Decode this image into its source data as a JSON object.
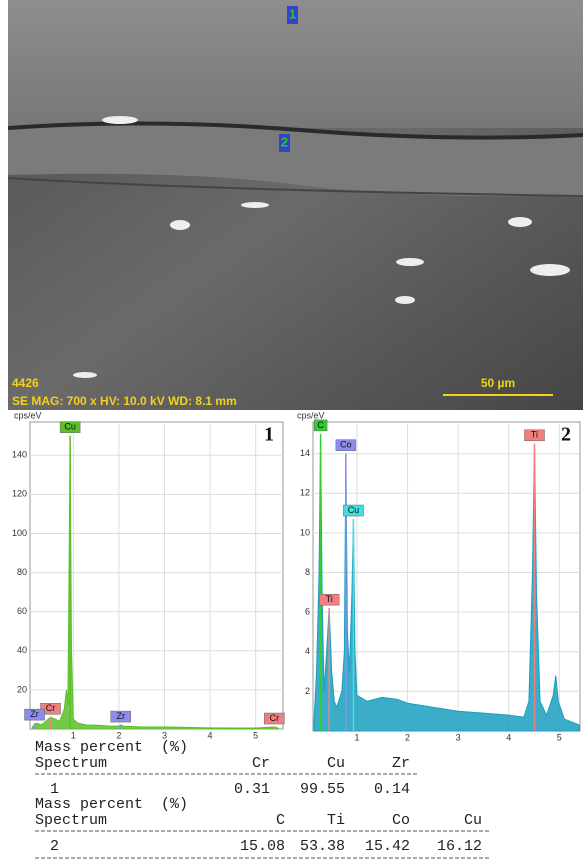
{
  "sem_image": {
    "markers": [
      "1",
      "2"
    ],
    "id": "4426",
    "info": "SE  MAG: 700 x  HV: 10.0 kV  WD: 8.1 mm",
    "scale_bar": "50 µm"
  },
  "chart_data": [
    {
      "type": "area",
      "panel_label": "1",
      "y_label": "cps/eV",
      "color": "#5cbf2a",
      "x": [
        0.1,
        0.2,
        0.3,
        0.4,
        0.5,
        0.6,
        0.7,
        0.8,
        0.85,
        0.88,
        0.9,
        0.93,
        0.96,
        1.0,
        1.1,
        1.3,
        1.5,
        1.8,
        2.0,
        2.04,
        2.1,
        2.5,
        3,
        3.5,
        4,
        4.5,
        5,
        5.41,
        5.5
      ],
      "values": [
        1,
        3,
        2,
        4,
        6,
        5,
        4,
        10,
        20,
        12,
        60,
        150,
        40,
        5,
        3,
        2,
        2,
        1.5,
        1.5,
        2,
        1.5,
        1,
        1,
        0.8,
        0.6,
        0.5,
        0.5,
        1,
        0.4
      ],
      "xlim": [
        0.05,
        5.6
      ],
      "ylim": [
        0,
        157
      ],
      "xticks": [
        1,
        2,
        3,
        4,
        5
      ],
      "yticks": [
        20,
        40,
        60,
        80,
        100,
        120,
        140
      ],
      "grid": true,
      "peaks": [
        {
          "label": "Cu",
          "x": 0.93,
          "y": 150,
          "color": "#5cbf2a"
        },
        {
          "label": "Cr",
          "x": 0.5,
          "y": 6,
          "color": "#f08080"
        },
        {
          "label": "Zr",
          "x": 0.15,
          "y": 3,
          "color": "#8c8cf0"
        },
        {
          "label": "Zr",
          "x": 2.04,
          "y": 2,
          "color": "#8c8cf0"
        },
        {
          "label": "Cr",
          "x": 5.41,
          "y": 1,
          "color": "#f08080"
        }
      ]
    },
    {
      "type": "area",
      "panel_label": "2",
      "y_label": "cps/eV",
      "color": "#1a9fc0",
      "x": [
        0.15,
        0.2,
        0.25,
        0.28,
        0.31,
        0.35,
        0.4,
        0.45,
        0.5,
        0.55,
        0.6,
        0.7,
        0.75,
        0.78,
        0.81,
        0.85,
        0.9,
        0.93,
        0.96,
        1.0,
        1.2,
        1.5,
        1.8,
        2.0,
        2.5,
        3.0,
        3.5,
        4.0,
        4.3,
        4.4,
        4.47,
        4.51,
        4.55,
        4.62,
        4.75,
        4.88,
        4.93,
        4.98,
        5.1,
        5.3,
        5.4
      ],
      "values": [
        0.5,
        3,
        8,
        15,
        7,
        2,
        4,
        6.2,
        3,
        1.5,
        1.2,
        2,
        4,
        14,
        5,
        3,
        7,
        10.7,
        4,
        1.8,
        1.5,
        1.7,
        1.6,
        1.4,
        1.2,
        1.0,
        0.9,
        0.8,
        0.7,
        1.5,
        8,
        14.5,
        7,
        1.5,
        0.8,
        1.8,
        2.8,
        1.5,
        0.6,
        0.4,
        0.3
      ],
      "xlim": [
        0.13,
        5.41
      ],
      "ylim": [
        0,
        15.6
      ],
      "xticks": [
        1,
        2,
        3,
        4,
        5
      ],
      "yticks": [
        2,
        4,
        6,
        8,
        10,
        12,
        14
      ],
      "grid": true,
      "peaks": [
        {
          "label": "C",
          "x": 0.28,
          "y": 15,
          "color": "#33cc33"
        },
        {
          "label": "Ti",
          "x": 0.45,
          "y": 6.2,
          "color": "#f08080"
        },
        {
          "label": "Co",
          "x": 0.78,
          "y": 14,
          "color": "#8c8cf0"
        },
        {
          "label": "Cu",
          "x": 0.93,
          "y": 10.7,
          "color": "#40e0e0"
        },
        {
          "label": "Ti",
          "x": 4.51,
          "y": 14.5,
          "color": "#f08080"
        }
      ]
    }
  ],
  "tables": [
    {
      "caption": "Mass percent  (%)",
      "header": [
        "Spectrum",
        "Cr",
        "Cu",
        "Zr"
      ],
      "rows": [
        [
          "1",
          0.31,
          99.55,
          0.14
        ]
      ]
    },
    {
      "caption": "Mass percent  (%)",
      "header": [
        "Spectrum",
        "C",
        "Ti",
        "Co",
        "Cu"
      ],
      "rows": [
        [
          "2",
          15.08,
          53.38,
          15.42,
          16.12
        ]
      ]
    }
  ]
}
